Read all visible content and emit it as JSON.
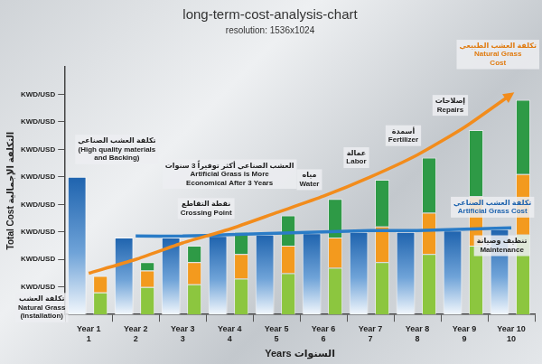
{
  "chart_data": {
    "type": "bar",
    "title": "long-term-cost-analysis-chart",
    "subtitle": "resolution: 1536x1024",
    "x_label": "Years السنوات",
    "y_label": "Total Cost التكلفة الإجمالية",
    "categories": [
      [
        "Year 1",
        "1"
      ],
      [
        "Year 2",
        "2"
      ],
      [
        "Year 3",
        "3"
      ],
      [
        "Year 4",
        "4"
      ],
      [
        "Year 5",
        "5"
      ],
      [
        "Year 6",
        "6"
      ],
      [
        "Year 7",
        "7"
      ],
      [
        "Year 8",
        "8"
      ],
      [
        "Year 9",
        "9"
      ],
      [
        "Year 10",
        "10"
      ]
    ],
    "ylim": [
      0,
      9
    ],
    "yticks": [
      {
        "value": 1,
        "label": "KWD/USD"
      },
      {
        "value": 2,
        "label": "KWD/USD"
      },
      {
        "value": 3,
        "label": "KWD/USD"
      },
      {
        "value": 4,
        "label": "KWD/USD"
      },
      {
        "value": 5,
        "label": "KWD/USD"
      },
      {
        "value": 6,
        "label": "KWD/USD"
      },
      {
        "value": 7,
        "label": "KWD/USD"
      },
      {
        "value": 8,
        "label": "KWD/USD"
      }
    ],
    "grid": false,
    "stacked": true,
    "series": [
      {
        "type": "bar",
        "color": "#1e63ae",
        "values": [
          5.0,
          2.8,
          2.8,
          2.85,
          2.9,
          2.95,
          3.0,
          3.0,
          3.05,
          3.1
        ]
      },
      {
        "type": "stacked_bar",
        "color": "#8cc63f",
        "values": [
          0.8,
          1.0,
          1.1,
          1.3,
          1.5,
          1.7,
          1.9,
          2.2,
          2.5,
          2.9
        ]
      },
      {
        "type": "stacked_bar",
        "color": "#f39a1e",
        "values": [
          0.6,
          0.6,
          0.8,
          0.9,
          1.0,
          1.1,
          1.3,
          1.5,
          1.8,
          2.2
        ]
      },
      {
        "type": "stacked_bar",
        "color": "#2e9a46",
        "values": [
          0,
          0.3,
          0.6,
          0.8,
          1.1,
          1.4,
          1.7,
          2.0,
          2.4,
          2.7
        ]
      },
      {
        "type": "line",
        "color": "#f28c1c",
        "marker": "arrow",
        "values": [
          1.5,
          2.0,
          2.6,
          3.1,
          3.7,
          4.3,
          5.0,
          5.8,
          6.8,
          8.0
        ]
      },
      {
        "type": "line",
        "color": "#2a7cc7",
        "marker": "none",
        "values": [
          null,
          2.85,
          2.85,
          2.9,
          2.95,
          3.0,
          3.05,
          3.05,
          3.1,
          3.15
        ]
      }
    ],
    "annotations": [
      {
        "text": [
          "تكلفة العشب الصناعي",
          "(High quality materials",
          "and Backing)"
        ],
        "x": 0.6,
        "y": 6.0
      },
      {
        "text": [
          "نقطة التقاطع",
          "Crossing Point"
        ],
        "x": 2.5,
        "y": 3.85
      },
      {
        "text": [
          "العشب الصناعي أكثر توفيراً 3 سنوات",
          "Artificial Grass is More",
          "Economical After 3 Years"
        ],
        "x": 3.0,
        "y": 5.1
      },
      {
        "text": [
          "مياه",
          "Water"
        ],
        "x": 4.7,
        "y": 4.9
      },
      {
        "text": [
          "عمالة",
          "Labor"
        ],
        "x": 5.7,
        "y": 5.7
      },
      {
        "text": [
          "أسمدة",
          "Fertilizer"
        ],
        "x": 6.7,
        "y": 6.5
      },
      {
        "text": [
          "إصلاحات",
          "Repairs"
        ],
        "x": 7.7,
        "y": 7.6
      },
      {
        "text": [
          "تكلفة العشب الطبيعي",
          "Natural Grass",
          "Cost"
        ],
        "x": 9,
        "y": 9.45,
        "color": "#e07b10"
      },
      {
        "text": [
          "تكلفة العشب الصناعي",
          "Artificial Grass Cost"
        ],
        "x": 8.6,
        "y": 3.9,
        "color": "#1e63ae"
      },
      {
        "text": [
          "تنظيف وصيانة",
          "Maintenance"
        ],
        "x": 8.8,
        "y": 2.5
      },
      {
        "text": [
          "تكلفة العشب",
          "Natural Grass",
          "(Installation)"
        ],
        "x": -1,
        "y": 0.25
      }
    ]
  }
}
